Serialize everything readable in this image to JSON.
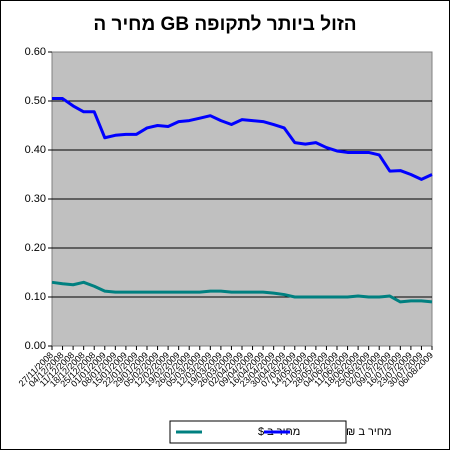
{
  "chart_data": {
    "type": "line",
    "title": "מחיר ה GB הזול ביותר לתקופה",
    "categories": [
      "27/11/2008",
      "04/12/2008",
      "11/12/2008",
      "18/12/2008",
      "25/12/2008",
      "01/01/2009",
      "08/01/2009",
      "15/01/2009",
      "22/01/2009",
      "29/01/2009",
      "05/02/2009",
      "12/02/2009",
      "19/02/2009",
      "26/02/2009",
      "05/03/2009",
      "12/03/2009",
      "19/03/2009",
      "26/03/2009",
      "02/04/2009",
      "09/04/2009",
      "16/04/2009",
      "23/04/2009",
      "30/04/2009",
      "07/05/2009",
      "14/05/2009",
      "21/05/2009",
      "28/05/2009",
      "04/06/2009",
      "11/06/2009",
      "18/06/2009",
      "25/06/2009",
      "02/07/2009",
      "09/07/2009",
      "16/07/2009",
      "23/07/2009",
      "30/07/2009",
      "06/08/2009"
    ],
    "series": [
      {
        "name": "מחיר ב $",
        "color": "#008080",
        "values": [
          0.13,
          0.127,
          0.125,
          0.13,
          0.122,
          0.112,
          0.11,
          0.11,
          0.11,
          0.11,
          0.11,
          0.11,
          0.11,
          0.11,
          0.11,
          0.112,
          0.112,
          0.11,
          0.11,
          0.11,
          0.11,
          0.108,
          0.105,
          0.1,
          0.1,
          0.1,
          0.1,
          0.1,
          0.1,
          0.102,
          0.1,
          0.1,
          0.102,
          0.09,
          0.092,
          0.092,
          0.09
        ]
      },
      {
        "name": "מחיר ב ₪",
        "color": "#0000ff",
        "values": [
          0.505,
          0.505,
          0.49,
          0.478,
          0.478,
          0.425,
          0.43,
          0.432,
          0.432,
          0.445,
          0.45,
          0.448,
          0.458,
          0.46,
          0.465,
          0.47,
          0.46,
          0.452,
          0.462,
          0.46,
          0.458,
          0.452,
          0.445,
          0.415,
          0.412,
          0.415,
          0.405,
          0.398,
          0.395,
          0.395,
          0.395,
          0.39,
          0.357,
          0.358,
          0.35,
          0.34,
          0.35
        ]
      }
    ],
    "ylim": [
      0,
      0.6
    ],
    "yticks": [
      {
        "value": 0,
        "label": "0.00"
      },
      {
        "value": 0.1,
        "label": "0.10"
      },
      {
        "value": 0.2,
        "label": "0.20"
      },
      {
        "value": 0.3,
        "label": "0.30"
      },
      {
        "value": 0.4,
        "label": "0.40"
      },
      {
        "value": 0.5,
        "label": "0.50"
      },
      {
        "value": 0.6,
        "label": "0.60"
      }
    ],
    "grid": true,
    "legend": "bottom"
  }
}
